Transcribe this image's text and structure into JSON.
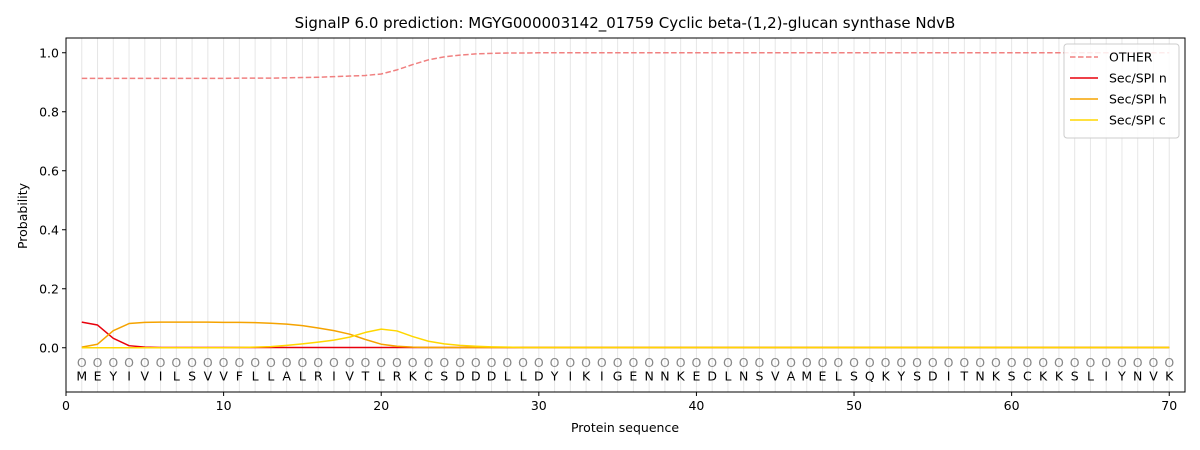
{
  "chart_data": {
    "type": "line",
    "title": "SignalP 6.0 prediction: MGYG000003142_01759 Cyclic beta-(1,2)-glucan synthase NdvB",
    "xlabel": "Protein sequence",
    "ylabel": "Probability",
    "xlim": [
      0,
      71
    ],
    "ylim": [
      -0.15,
      1.05
    ],
    "xticks": [
      0,
      10,
      20,
      30,
      40,
      50,
      60,
      70
    ],
    "yticks": [
      0.0,
      0.2,
      0.4,
      0.6,
      0.8,
      1.0
    ],
    "grid": "vertical lines at each residue",
    "legend_position": "top-right",
    "sequence": [
      "M",
      "E",
      "Y",
      "I",
      "V",
      "I",
      "L",
      "S",
      "V",
      "V",
      "F",
      "L",
      "L",
      "A",
      "L",
      "R",
      "I",
      "V",
      "T",
      "L",
      "R",
      "K",
      "C",
      "S",
      "D",
      "D",
      "D",
      "L",
      "L",
      "D",
      "Y",
      "I",
      "K",
      "I",
      "G",
      "E",
      "N",
      "N",
      "K",
      "E",
      "D",
      "L",
      "N",
      "S",
      "V",
      "A",
      "M",
      "E",
      "L",
      "S",
      "Q",
      "K",
      "Y",
      "S",
      "D",
      "I",
      "T",
      "N",
      "K",
      "S",
      "C",
      "K",
      "K",
      "S",
      "L",
      "I",
      "Y",
      "N",
      "V",
      "K"
    ],
    "annotations": [
      "O",
      "O",
      "O",
      "O",
      "O",
      "O",
      "O",
      "O",
      "O",
      "O",
      "O",
      "O",
      "O",
      "O",
      "O",
      "O",
      "O",
      "O",
      "O",
      "O",
      "O",
      "O",
      "O",
      "O",
      "O",
      "O",
      "O",
      "O",
      "O",
      "O",
      "O",
      "O",
      "O",
      "O",
      "O",
      "O",
      "O",
      "O",
      "O",
      "O",
      "O",
      "O",
      "O",
      "O",
      "O",
      "O",
      "O",
      "O",
      "O",
      "O",
      "O",
      "O",
      "O",
      "O",
      "O",
      "O",
      "O",
      "O",
      "O",
      "O",
      "O",
      "O",
      "O",
      "O",
      "O",
      "O",
      "O",
      "O",
      "O",
      "O"
    ],
    "series": [
      {
        "name": "OTHER",
        "color": "#f08080",
        "dash": true,
        "values": [
          0.913,
          0.913,
          0.913,
          0.913,
          0.913,
          0.913,
          0.913,
          0.913,
          0.913,
          0.913,
          0.914,
          0.914,
          0.914,
          0.915,
          0.916,
          0.917,
          0.919,
          0.921,
          0.923,
          0.928,
          0.942,
          0.96,
          0.976,
          0.986,
          0.992,
          0.996,
          0.998,
          0.999,
          0.999,
          1.0,
          1.0,
          1.0,
          1.0,
          1.0,
          1.0,
          1.0,
          1.0,
          1.0,
          1.0,
          1.0,
          1.0,
          1.0,
          1.0,
          1.0,
          1.0,
          1.0,
          1.0,
          1.0,
          1.0,
          1.0,
          1.0,
          1.0,
          1.0,
          1.0,
          1.0,
          1.0,
          1.0,
          1.0,
          1.0,
          1.0,
          1.0,
          1.0,
          1.0,
          1.0,
          1.0,
          1.0,
          1.0,
          1.0,
          1.0,
          1.0
        ]
      },
      {
        "name": "Sec/SPI n",
        "color": "#e8000b",
        "dash": false,
        "values": [
          0.087,
          0.077,
          0.032,
          0.007,
          0.002,
          0.001,
          0.001,
          0.001,
          0.001,
          0.001,
          0.001,
          0.001,
          0.001,
          0.001,
          0.001,
          0.001,
          0.001,
          0.001,
          0.001,
          0.001,
          0.001,
          0.001,
          0.001,
          0.001,
          0.001,
          0.001,
          0.001,
          0.001,
          0.001,
          0.001,
          0.001,
          0.001,
          0.001,
          0.001,
          0.001,
          0.001,
          0.001,
          0.001,
          0.001,
          0.001,
          0.001,
          0.001,
          0.001,
          0.001,
          0.001,
          0.001,
          0.001,
          0.001,
          0.001,
          0.001,
          0.001,
          0.001,
          0.001,
          0.001,
          0.001,
          0.001,
          0.001,
          0.001,
          0.001,
          0.001,
          0.001,
          0.001,
          0.001,
          0.001,
          0.001,
          0.001,
          0.001,
          0.001,
          0.001,
          0.001
        ]
      },
      {
        "name": "Sec/SPI h",
        "color": "#f5a300",
        "dash": false,
        "values": [
          0.002,
          0.012,
          0.058,
          0.082,
          0.086,
          0.087,
          0.087,
          0.087,
          0.087,
          0.086,
          0.086,
          0.085,
          0.083,
          0.08,
          0.075,
          0.067,
          0.058,
          0.046,
          0.028,
          0.012,
          0.005,
          0.002,
          0.001,
          0.001,
          0.001,
          0.001,
          0.001,
          0.001,
          0.001,
          0.001,
          0.001,
          0.001,
          0.001,
          0.001,
          0.001,
          0.001,
          0.001,
          0.001,
          0.001,
          0.001,
          0.001,
          0.001,
          0.001,
          0.001,
          0.001,
          0.001,
          0.001,
          0.001,
          0.001,
          0.001,
          0.001,
          0.001,
          0.001,
          0.001,
          0.001,
          0.001,
          0.001,
          0.001,
          0.001,
          0.001,
          0.001,
          0.001,
          0.001,
          0.001,
          0.001,
          0.001,
          0.001,
          0.001,
          0.001,
          0.001
        ]
      },
      {
        "name": "Sec/SPI c",
        "color": "#ffd700",
        "dash": false,
        "values": [
          0.0,
          0.0,
          0.0,
          0.0,
          0.0,
          0.0,
          0.0,
          0.0,
          0.0,
          0.0,
          0.001,
          0.002,
          0.004,
          0.008,
          0.013,
          0.019,
          0.026,
          0.036,
          0.052,
          0.063,
          0.057,
          0.038,
          0.022,
          0.013,
          0.008,
          0.005,
          0.003,
          0.002,
          0.001,
          0.001,
          0.001,
          0.001,
          0.001,
          0.001,
          0.001,
          0.001,
          0.001,
          0.001,
          0.001,
          0.001,
          0.001,
          0.001,
          0.001,
          0.001,
          0.001,
          0.001,
          0.001,
          0.001,
          0.001,
          0.001,
          0.001,
          0.001,
          0.001,
          0.001,
          0.001,
          0.001,
          0.001,
          0.001,
          0.001,
          0.001,
          0.001,
          0.001,
          0.001,
          0.001,
          0.001,
          0.001,
          0.001,
          0.001,
          0.001,
          0.001
        ]
      }
    ]
  }
}
